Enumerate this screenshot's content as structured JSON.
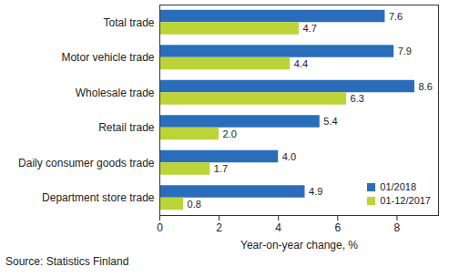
{
  "chart_data": {
    "type": "bar",
    "orientation": "horizontal",
    "categories": [
      "Total trade",
      "Motor vehicle trade",
      "Wholesale trade",
      "Retail trade",
      "Daily consumer goods trade",
      "Department store trade"
    ],
    "series": [
      {
        "name": "01/2018",
        "color": "#2a6ebb",
        "values": [
          7.6,
          7.9,
          8.6,
          5.4,
          4.0,
          4.9
        ],
        "value_labels": [
          "7.6",
          "7.9",
          "8.6",
          "5.4",
          "4.0",
          "4.9"
        ]
      },
      {
        "name": "01-12/2017",
        "color": "#bcd438",
        "values": [
          4.7,
          4.4,
          6.3,
          2.0,
          1.7,
          0.8
        ],
        "value_labels": [
          "4.7",
          "4.4",
          "6.3",
          "2.0",
          "1.7",
          "0.8"
        ]
      }
    ],
    "x_label": "Year-on-year change, %",
    "xlim": [
      0,
      9.4
    ],
    "xticks": [
      0,
      2,
      4,
      6,
      8
    ],
    "grid": false,
    "legend": "lower right",
    "data_labels": true,
    "caption": "Source: Statistics Finland"
  }
}
